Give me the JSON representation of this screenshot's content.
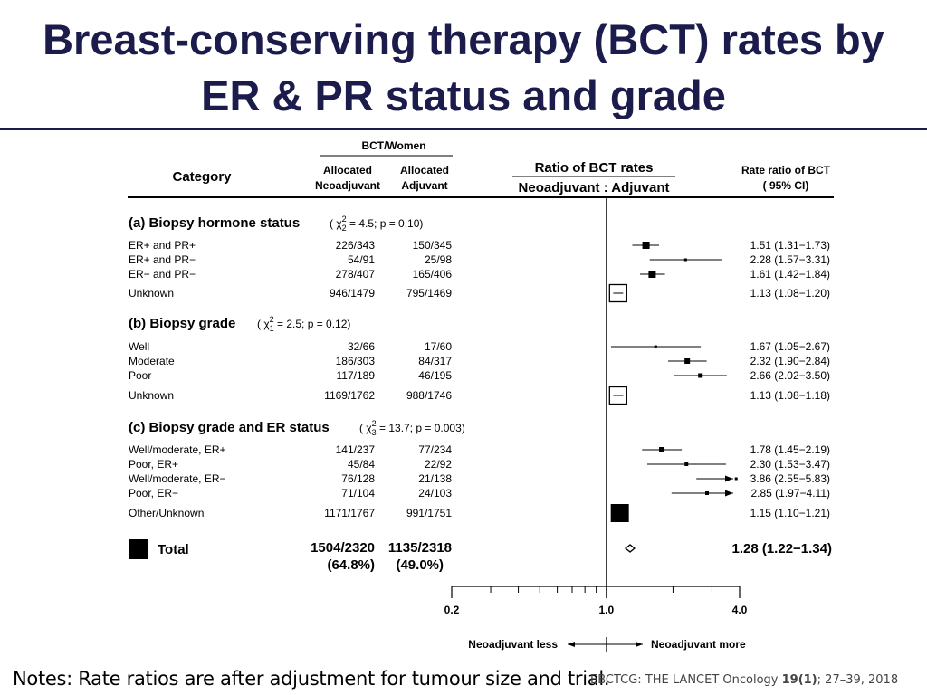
{
  "title": {
    "line1": "Breast-conserving therapy (BCT) rates by",
    "line2": "ER & PR status and grade"
  },
  "notes": "Notes: Rate ratios are after adjustment for tumour size and trial.",
  "source": {
    "prefix": "EBCTCG: THE LANCET Oncology ",
    "volume": "19(1)",
    "suffix": ";  27–39, 2018"
  },
  "colors": {
    "title": "#1c1c4c",
    "ink": "#000000"
  },
  "chart_data": {
    "type": "forest",
    "header": {
      "category": "Category",
      "bct_women": "BCT/Women",
      "neo_line1": "Allocated",
      "neo_line2": "Neoadjuvant",
      "adj_line1": "Allocated",
      "adj_line2": "Adjuvant",
      "ratio_line1": "Ratio of BCT rates",
      "ratio_line2": "Neoadjuvant : Adjuvant",
      "rr_line1": "Rate ratio of BCT",
      "rr_line2": "( 95% CI)"
    },
    "x_axis": {
      "scale": "log",
      "range": [
        0.2,
        4.0
      ],
      "ticks": [
        0.2,
        1.0,
        4.0
      ],
      "tick_labels": [
        "0.2",
        "1.0",
        "4.0"
      ],
      "reference": 1.0
    },
    "direction": {
      "left": "Neoadjuvant less",
      "right": "Neoadjuvant more"
    },
    "sections": [
      {
        "heading": "(a) Biopsy hormone status",
        "stat": {
          "df": "2",
          "chi": "4.5",
          "p": "p = 0.10"
        },
        "rows": [
          {
            "label": "ER+ and PR+",
            "neo": "226/343",
            "adj": "150/345",
            "rr": 1.51,
            "lo": 1.31,
            "hi": 1.73,
            "rr_text": "1.51 (1.31−1.73)",
            "marker": "square",
            "size": 8
          },
          {
            "label": "ER+ and PR−",
            "neo": "54/91",
            "adj": "25/98",
            "rr": 2.28,
            "lo": 1.57,
            "hi": 3.31,
            "rr_text": "2.28 (1.57−3.31)",
            "marker": "square",
            "size": 3
          },
          {
            "label": "ER− and PR−",
            "neo": "278/407",
            "adj": "165/406",
            "rr": 1.61,
            "lo": 1.42,
            "hi": 1.84,
            "rr_text": "1.61 (1.42−1.84)",
            "marker": "square",
            "size": 8
          },
          {
            "label": "Unknown",
            "neo": "946/1479",
            "adj": "795/1469",
            "rr": 1.13,
            "lo": 1.08,
            "hi": 1.2,
            "rr_text": "1.13 (1.08−1.20)",
            "marker": "open-square",
            "size": 19
          }
        ]
      },
      {
        "heading": "(b) Biopsy grade",
        "stat": {
          "df": "1",
          "chi": "2.5",
          "p": "p = 0.12"
        },
        "rows": [
          {
            "label": "Well",
            "neo": "32/66",
            "adj": "17/60",
            "rr": 1.67,
            "lo": 1.05,
            "hi": 2.67,
            "rr_text": "1.67 (1.05−2.67)",
            "marker": "square",
            "size": 3
          },
          {
            "label": "Moderate",
            "neo": "186/303",
            "adj": "84/317",
            "rr": 2.32,
            "lo": 1.9,
            "hi": 2.84,
            "rr_text": "2.32 (1.90−2.84)",
            "marker": "square",
            "size": 6
          },
          {
            "label": "Poor",
            "neo": "117/189",
            "adj": "46/195",
            "rr": 2.66,
            "lo": 2.02,
            "hi": 3.5,
            "rr_text": "2.66 (2.02−3.50)",
            "marker": "square",
            "size": 5
          },
          {
            "label": "Unknown",
            "neo": "1169/1762",
            "adj": "988/1746",
            "rr": 1.13,
            "lo": 1.08,
            "hi": 1.18,
            "rr_text": "1.13 (1.08−1.18)",
            "marker": "open-square",
            "size": 19
          }
        ]
      },
      {
        "heading": "(c) Biopsy grade and ER status",
        "stat": {
          "df": "3",
          "chi": "13.7",
          "p": "p = 0.003"
        },
        "rows": [
          {
            "label": "Well/moderate, ER+",
            "neo": "141/237",
            "adj": "77/234",
            "rr": 1.78,
            "lo": 1.45,
            "hi": 2.19,
            "rr_text": "1.78 (1.45−2.19)",
            "marker": "square",
            "size": 6
          },
          {
            "label": "Poor, ER+",
            "neo": "45/84",
            "adj": "22/92",
            "rr": 2.3,
            "lo": 1.53,
            "hi": 3.47,
            "rr_text": "2.30 (1.53−3.47)",
            "marker": "square",
            "size": 4
          },
          {
            "label": "Well/moderate, ER−",
            "neo": "76/128",
            "adj": "21/138",
            "rr": 3.86,
            "lo": 2.55,
            "hi": 5.83,
            "rr_text": "3.86 (2.55−5.83)",
            "marker": "square",
            "size": 3
          },
          {
            "label": "Poor, ER−",
            "neo": "71/104",
            "adj": "24/103",
            "rr": 2.85,
            "lo": 1.97,
            "hi": 4.11,
            "rr_text": "2.85 (1.97−4.11)",
            "marker": "square",
            "size": 4
          },
          {
            "label": "Other/Unknown",
            "neo": "1171/1767",
            "adj": "991/1751",
            "rr": 1.15,
            "lo": 1.1,
            "hi": 1.21,
            "rr_text": "1.15 (1.10−1.21)",
            "marker": "filled-square",
            "size": 20
          }
        ]
      }
    ],
    "total": {
      "label": "Total",
      "neo": "1504/2320",
      "neo_pct": "(64.8%)",
      "adj": "1135/2318",
      "adj_pct": "(49.0%)",
      "rr": 1.28,
      "lo": 1.22,
      "hi": 1.34,
      "rr_text": "1.28 (1.22−1.34)",
      "marker": "diamond"
    }
  }
}
